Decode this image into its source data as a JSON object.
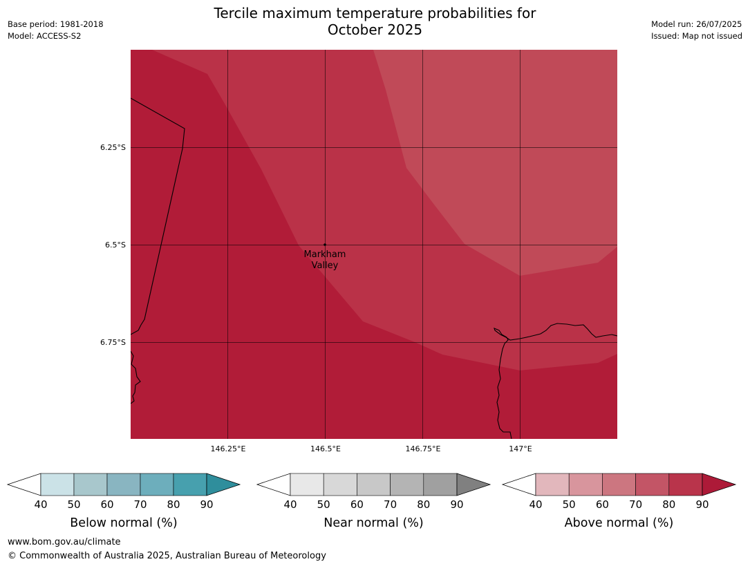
{
  "title": {
    "line1": "Tercile maximum temperature probabilities for",
    "line2": "October 2025"
  },
  "meta_left": {
    "base_period": "Base period: 1981-2018",
    "model": "Model: ACCESS-S2"
  },
  "meta_right": {
    "model_run": "Model run: 26/07/2025",
    "issued": "Issued: Map not issued"
  },
  "map": {
    "lat_labels": [
      "6.25°S",
      "6.5°S",
      "6.75°S"
    ],
    "lon_labels": [
      "146.25°E",
      "146.5°E",
      "146.75°E",
      "147°E"
    ],
    "place": {
      "name_line1": "Markham",
      "name_line2": "Valley"
    },
    "fill_colors": {
      "above_90": "#b11c38",
      "above_80": "#ba3248",
      "above_70": "#c04a58"
    }
  },
  "colorbars": [
    {
      "title": "Below normal (%)",
      "ticks": [
        "40",
        "50",
        "60",
        "70",
        "80",
        "90"
      ],
      "colors": [
        "#cbe2e7",
        "#a8c7cc",
        "#89b5c1",
        "#6daebc",
        "#47a0ae",
        "#2f8e9c"
      ]
    },
    {
      "title": "Near normal (%)",
      "ticks": [
        "40",
        "50",
        "60",
        "70",
        "80",
        "90"
      ],
      "colors": [
        "#e8e8e8",
        "#d8d8d8",
        "#c8c8c8",
        "#b4b4b4",
        "#a0a0a0",
        "#808080"
      ]
    },
    {
      "title": "Above normal (%)",
      "ticks": [
        "40",
        "50",
        "60",
        "70",
        "80",
        "90"
      ],
      "colors": [
        "#e2b7bc",
        "#d8959d",
        "#cc7680",
        "#c35566",
        "#b9344b",
        "#ad1a38"
      ]
    }
  ],
  "footer": {
    "url": "www.bom.gov.au/climate",
    "copyright": "© Commonwealth of Australia 2025, Australian Bureau of Meteorology"
  }
}
